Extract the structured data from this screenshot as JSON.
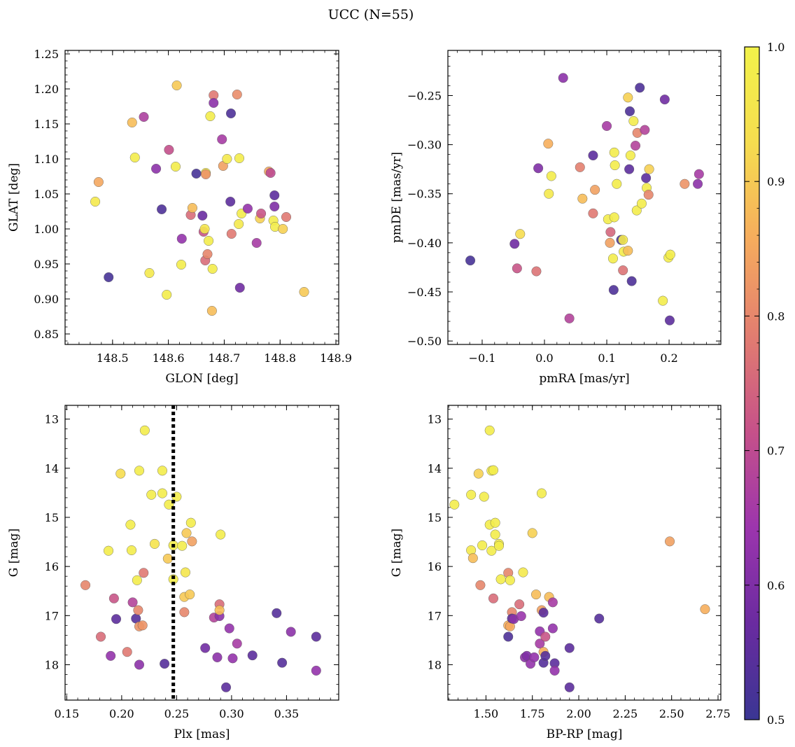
{
  "title": "UCC (N=55)",
  "colormap": {
    "name": "plasma",
    "range": [
      0.5,
      1.0
    ],
    "ticks": [
      "0.5",
      "0.6",
      "0.7",
      "0.8",
      "0.9",
      "1.0"
    ],
    "stops": [
      "#3a3693",
      "#6a2ba0",
      "#9c35ad",
      "#c65189",
      "#e27d70",
      "#f6ac5d",
      "#f6dd4f",
      "#f2f24a"
    ]
  },
  "chart_data": [
    {
      "type": "scatter",
      "xlabel": "GLON [deg]",
      "ylabel": "GLAT [deg]",
      "xlim": [
        148.415,
        148.905
      ],
      "ylim": [
        0.835,
        1.255
      ],
      "xticks": [
        "148.5",
        "148.6",
        "148.7",
        "148.8",
        "148.9"
      ],
      "yticks": [
        "0.85",
        "0.90",
        "0.95",
        "1.00",
        "1.05",
        "1.10",
        "1.15",
        "1.20",
        "1.25"
      ],
      "y_inverted": false,
      "points": [
        [
          148.475,
          1.067,
          0.85
        ],
        [
          148.469,
          1.039,
          0.97
        ],
        [
          148.493,
          0.931,
          0.52
        ],
        [
          148.535,
          1.152,
          0.88
        ],
        [
          148.54,
          1.102,
          0.98
        ],
        [
          148.556,
          1.16,
          0.67
        ],
        [
          148.566,
          0.937,
          0.97
        ],
        [
          148.578,
          1.086,
          0.62
        ],
        [
          148.588,
          1.028,
          0.53
        ],
        [
          148.597,
          0.906,
          0.98
        ],
        [
          148.601,
          1.113,
          0.71
        ],
        [
          148.613,
          1.089,
          0.98
        ],
        [
          148.615,
          1.205,
          0.9
        ],
        [
          148.623,
          0.949,
          0.98
        ],
        [
          148.624,
          0.986,
          0.63
        ],
        [
          148.64,
          1.02,
          0.76
        ],
        [
          148.643,
          1.03,
          0.88
        ],
        [
          148.65,
          1.079,
          0.52
        ],
        [
          148.661,
          1.019,
          0.57
        ],
        [
          148.663,
          0.996,
          0.72
        ],
        [
          148.665,
          1.0,
          0.96
        ],
        [
          148.666,
          0.955,
          0.76
        ],
        [
          148.667,
          1.08,
          0.97
        ],
        [
          148.667,
          1.078,
          0.82
        ],
        [
          148.67,
          0.964,
          0.8
        ],
        [
          148.672,
          0.983,
          0.98
        ],
        [
          148.675,
          1.161,
          0.98
        ],
        [
          148.678,
          0.883,
          0.88
        ],
        [
          148.679,
          0.943,
          0.98
        ],
        [
          148.681,
          1.191,
          0.78
        ],
        [
          148.681,
          1.18,
          0.62
        ],
        [
          148.696,
          1.128,
          0.66
        ],
        [
          148.698,
          1.09,
          0.84
        ],
        [
          148.705,
          1.1,
          0.97
        ],
        [
          148.711,
          1.039,
          0.55
        ],
        [
          148.712,
          1.165,
          0.53
        ],
        [
          148.713,
          0.993,
          0.78
        ],
        [
          148.723,
          1.192,
          0.81
        ],
        [
          148.726,
          1.007,
          0.97
        ],
        [
          148.727,
          1.101,
          0.98
        ],
        [
          148.728,
          0.916,
          0.58
        ],
        [
          148.731,
          1.022,
          0.98
        ],
        [
          148.742,
          1.029,
          0.63
        ],
        [
          148.758,
          0.98,
          0.66
        ],
        [
          148.764,
          1.015,
          0.91
        ],
        [
          148.766,
          1.022,
          0.72
        ],
        [
          148.78,
          1.082,
          0.85
        ],
        [
          148.783,
          1.08,
          0.7
        ],
        [
          148.788,
          1.012,
          0.98
        ],
        [
          148.79,
          1.048,
          0.55
        ],
        [
          148.79,
          1.032,
          0.6
        ],
        [
          148.791,
          1.003,
          0.98
        ],
        [
          148.805,
          1.0,
          0.91
        ],
        [
          148.811,
          1.017,
          0.78
        ],
        [
          148.843,
          0.91,
          0.9
        ]
      ]
    },
    {
      "type": "scatter",
      "xlabel": "pmRA [mas/yr]",
      "ylabel": "pmDE [mas/yr]",
      "xlim": [
        -0.155,
        0.283
      ],
      "ylim": [
        -0.5035,
        -0.204
      ],
      "xticks": [
        "−0.1",
        "0.0",
        "0.1",
        "0.2"
      ],
      "yticks": [
        "−0.50",
        "−0.45",
        "−0.40",
        "−0.35",
        "−0.30",
        "−0.25"
      ],
      "y_inverted": false,
      "points": [
        [
          -0.119,
          -0.418,
          0.52
        ],
        [
          -0.048,
          -0.401,
          0.58
        ],
        [
          -0.044,
          -0.426,
          0.72
        ],
        [
          -0.039,
          -0.391,
          0.93
        ],
        [
          -0.013,
          -0.429,
          0.77
        ],
        [
          -0.01,
          -0.324,
          0.6
        ],
        [
          0.006,
          -0.299,
          0.86
        ],
        [
          0.007,
          -0.35,
          0.97
        ],
        [
          0.011,
          -0.332,
          0.98
        ],
        [
          0.03,
          -0.232,
          0.62
        ],
        [
          0.04,
          -0.477,
          0.68
        ],
        [
          0.057,
          -0.323,
          0.79
        ],
        [
          0.061,
          -0.355,
          0.88
        ],
        [
          0.078,
          -0.37,
          0.78
        ],
        [
          0.078,
          -0.311,
          0.55
        ],
        [
          0.081,
          -0.346,
          0.84
        ],
        [
          0.1,
          -0.281,
          0.66
        ],
        [
          0.102,
          -0.376,
          0.98
        ],
        [
          0.105,
          -0.4,
          0.84
        ],
        [
          0.106,
          -0.389,
          0.75
        ],
        [
          0.11,
          -0.416,
          0.98
        ],
        [
          0.111,
          -0.448,
          0.53
        ],
        [
          0.112,
          -0.308,
          0.98
        ],
        [
          0.112,
          -0.374,
          0.98
        ],
        [
          0.113,
          -0.321,
          0.98
        ],
        [
          0.116,
          -0.34,
          0.98
        ],
        [
          0.123,
          -0.397,
          0.52
        ],
        [
          0.126,
          -0.397,
          0.97
        ],
        [
          0.126,
          -0.428,
          0.77
        ],
        [
          0.127,
          -0.409,
          0.98
        ],
        [
          0.134,
          -0.408,
          0.88
        ],
        [
          0.134,
          -0.252,
          0.91
        ],
        [
          0.136,
          -0.325,
          0.55
        ],
        [
          0.137,
          -0.266,
          0.53
        ],
        [
          0.138,
          -0.311,
          0.98
        ],
        [
          0.14,
          -0.439,
          0.53
        ],
        [
          0.143,
          -0.276,
          0.98
        ],
        [
          0.146,
          -0.301,
          0.68
        ],
        [
          0.148,
          -0.367,
          0.98
        ],
        [
          0.149,
          -0.288,
          0.8
        ],
        [
          0.153,
          -0.242,
          0.53
        ],
        [
          0.156,
          -0.36,
          0.98
        ],
        [
          0.161,
          -0.285,
          0.68
        ],
        [
          0.163,
          -0.334,
          0.55
        ],
        [
          0.164,
          -0.344,
          0.98
        ],
        [
          0.167,
          -0.351,
          0.8
        ],
        [
          0.168,
          -0.325,
          0.91
        ],
        [
          0.19,
          -0.459,
          0.98
        ],
        [
          0.193,
          -0.254,
          0.58
        ],
        [
          0.199,
          -0.415,
          0.98
        ],
        [
          0.201,
          -0.479,
          0.55
        ],
        [
          0.202,
          -0.412,
          0.98
        ],
        [
          0.225,
          -0.34,
          0.82
        ],
        [
          0.246,
          -0.34,
          0.62
        ],
        [
          0.248,
          -0.33,
          0.66
        ]
      ]
    },
    {
      "type": "scatter",
      "xlabel": "Plx [mas]",
      "ylabel": "G [mag]",
      "xlim": [
        0.1485,
        0.3975
      ],
      "ylim": [
        12.72,
        18.72
      ],
      "xticks": [
        "0.15",
        "0.20",
        "0.25",
        "0.30",
        "0.35"
      ],
      "yticks": [
        "13",
        "14",
        "15",
        "16",
        "17",
        "18"
      ],
      "y_inverted": true,
      "vline": 0.247,
      "points": [
        [
          0.167,
          16.38,
          0.8
        ],
        [
          0.181,
          17.43,
          0.76
        ],
        [
          0.188,
          15.68,
          0.98
        ],
        [
          0.19,
          17.82,
          0.63
        ],
        [
          0.193,
          16.65,
          0.72
        ],
        [
          0.195,
          17.07,
          0.55
        ],
        [
          0.199,
          14.11,
          0.93
        ],
        [
          0.205,
          17.74,
          0.78
        ],
        [
          0.208,
          15.15,
          0.98
        ],
        [
          0.209,
          15.67,
          0.98
        ],
        [
          0.21,
          16.73,
          0.68
        ],
        [
          0.213,
          17.06,
          0.54
        ],
        [
          0.214,
          16.28,
          0.98
        ],
        [
          0.215,
          16.89,
          0.8
        ],
        [
          0.216,
          17.22,
          0.82
        ],
        [
          0.216,
          14.05,
          0.98
        ],
        [
          0.216,
          18.0,
          0.62
        ],
        [
          0.219,
          17.2,
          0.82
        ],
        [
          0.22,
          16.13,
          0.78
        ],
        [
          0.221,
          13.23,
          0.98
        ],
        [
          0.227,
          14.54,
          0.98
        ],
        [
          0.23,
          15.54,
          0.95
        ],
        [
          0.237,
          14.05,
          0.98
        ],
        [
          0.237,
          14.51,
          0.98
        ],
        [
          0.239,
          17.98,
          0.54
        ],
        [
          0.242,
          15.84,
          0.9
        ],
        [
          0.243,
          14.74,
          0.98
        ],
        [
          0.247,
          15.57,
          0.98
        ],
        [
          0.247,
          16.26,
          0.98
        ],
        [
          0.25,
          14.58,
          0.98
        ],
        [
          0.255,
          15.58,
          0.98
        ],
        [
          0.257,
          16.62,
          0.9
        ],
        [
          0.257,
          16.93,
          0.8
        ],
        [
          0.258,
          16.12,
          0.96
        ],
        [
          0.259,
          15.32,
          0.9
        ],
        [
          0.262,
          16.57,
          0.9
        ],
        [
          0.263,
          15.11,
          0.98
        ],
        [
          0.264,
          15.49,
          0.84
        ],
        [
          0.276,
          17.66,
          0.58
        ],
        [
          0.284,
          17.04,
          0.68
        ],
        [
          0.287,
          17.85,
          0.62
        ],
        [
          0.289,
          17.01,
          0.62
        ],
        [
          0.289,
          16.77,
          0.76
        ],
        [
          0.289,
          16.89,
          0.88
        ],
        [
          0.29,
          15.35,
          0.98
        ],
        [
          0.295,
          18.46,
          0.55
        ],
        [
          0.298,
          17.26,
          0.63
        ],
        [
          0.301,
          17.87,
          0.63
        ],
        [
          0.305,
          17.57,
          0.66
        ],
        [
          0.319,
          17.81,
          0.55
        ],
        [
          0.341,
          16.95,
          0.54
        ],
        [
          0.346,
          17.96,
          0.54
        ],
        [
          0.354,
          17.33,
          0.62
        ],
        [
          0.377,
          17.43,
          0.55
        ],
        [
          0.377,
          18.12,
          0.63
        ]
      ]
    },
    {
      "type": "scatter",
      "xlabel": "BP-RP [mag]",
      "ylabel": "G [mag]",
      "xlim": [
        1.295,
        2.765
      ],
      "ylim": [
        12.72,
        18.72
      ],
      "xticks": [
        "1.50",
        "1.75",
        "2.00",
        "2.25",
        "2.50",
        "2.75"
      ],
      "yticks": [
        "13",
        "14",
        "15",
        "16",
        "17",
        "18"
      ],
      "y_inverted": true,
      "points": [
        [
          1.33,
          14.74,
          0.98
        ],
        [
          1.42,
          14.54,
          0.98
        ],
        [
          1.42,
          15.67,
          0.97
        ],
        [
          1.43,
          15.83,
          0.88
        ],
        [
          1.46,
          14.11,
          0.91
        ],
        [
          1.47,
          16.38,
          0.8
        ],
        [
          1.48,
          15.57,
          0.98
        ],
        [
          1.49,
          14.58,
          0.98
        ],
        [
          1.52,
          13.23,
          0.98
        ],
        [
          1.52,
          15.15,
          0.98
        ],
        [
          1.53,
          14.05,
          0.98
        ],
        [
          1.53,
          15.68,
          0.98
        ],
        [
          1.54,
          14.04,
          0.98
        ],
        [
          1.54,
          16.65,
          0.76
        ],
        [
          1.55,
          15.11,
          0.98
        ],
        [
          1.55,
          15.35,
          0.98
        ],
        [
          1.57,
          15.54,
          0.98
        ],
        [
          1.57,
          15.58,
          0.98
        ],
        [
          1.58,
          16.26,
          0.98
        ],
        [
          1.62,
          16.13,
          0.8
        ],
        [
          1.62,
          17.2,
          0.86
        ],
        [
          1.62,
          17.43,
          0.53
        ],
        [
          1.63,
          16.28,
          0.98
        ],
        [
          1.63,
          17.22,
          0.85
        ],
        [
          1.64,
          16.93,
          0.8
        ],
        [
          1.64,
          17.06,
          0.55
        ],
        [
          1.65,
          17.07,
          0.62
        ],
        [
          1.68,
          16.77,
          0.76
        ],
        [
          1.69,
          17.01,
          0.64
        ],
        [
          1.7,
          16.12,
          0.97
        ],
        [
          1.71,
          17.85,
          0.62
        ],
        [
          1.72,
          17.82,
          0.6
        ],
        [
          1.74,
          17.98,
          0.63
        ],
        [
          1.75,
          15.32,
          0.91
        ],
        [
          1.76,
          17.85,
          0.63
        ],
        [
          1.77,
          16.57,
          0.88
        ],
        [
          1.79,
          17.32,
          0.63
        ],
        [
          1.79,
          17.57,
          0.66
        ],
        [
          1.8,
          14.51,
          0.98
        ],
        [
          1.8,
          16.89,
          0.84
        ],
        [
          1.81,
          16.94,
          0.55
        ],
        [
          1.81,
          17.74,
          0.86
        ],
        [
          1.81,
          17.96,
          0.54
        ],
        [
          1.82,
          17.82,
          0.54
        ],
        [
          1.82,
          17.43,
          0.72
        ],
        [
          1.84,
          16.62,
          0.88
        ],
        [
          1.86,
          16.73,
          0.66
        ],
        [
          1.86,
          17.26,
          0.63
        ],
        [
          1.87,
          17.97,
          0.55
        ],
        [
          1.87,
          18.12,
          0.63
        ],
        [
          1.95,
          17.66,
          0.55
        ],
        [
          1.95,
          18.46,
          0.55
        ],
        [
          2.11,
          17.06,
          0.54
        ],
        [
          2.49,
          15.49,
          0.84
        ],
        [
          2.68,
          16.87,
          0.86
        ]
      ]
    }
  ]
}
